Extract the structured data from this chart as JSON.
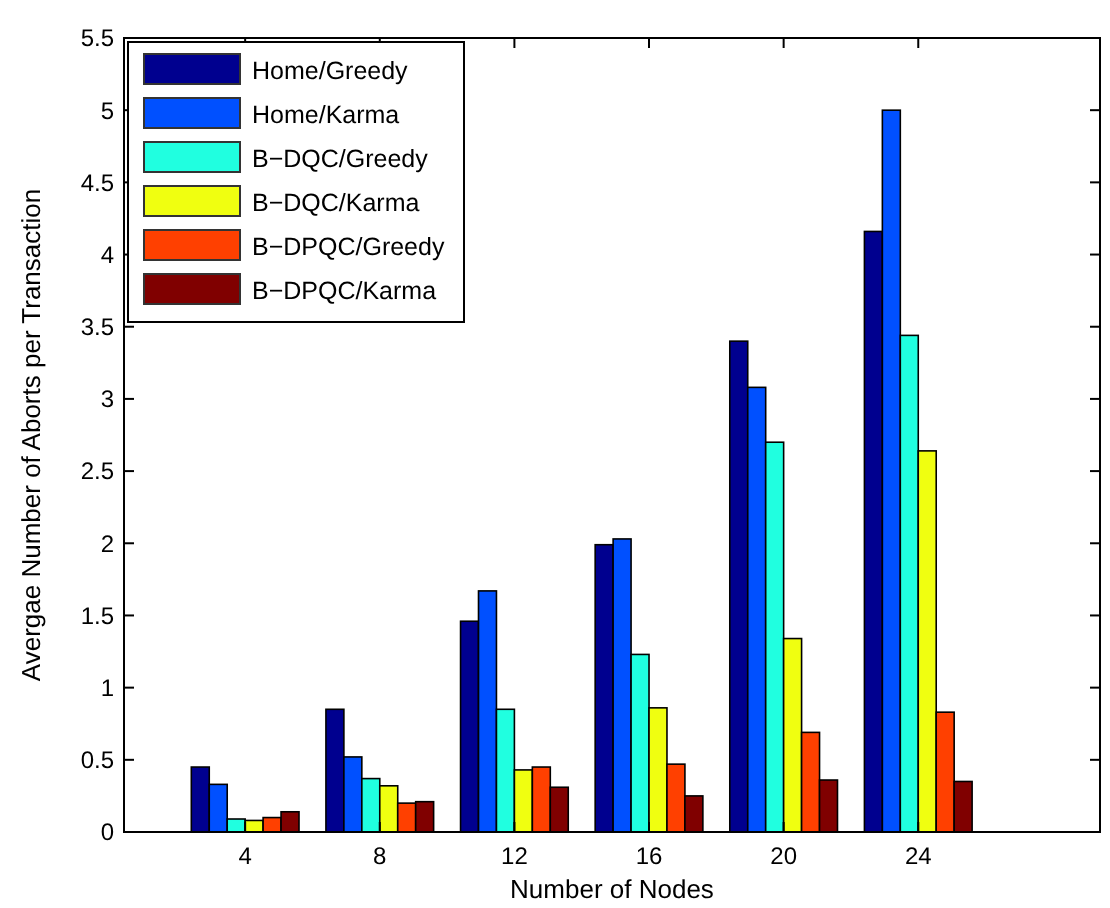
{
  "chart_data": {
    "type": "bar",
    "xlabel": "Number of Nodes",
    "ylabel": "Avergae Number of Aborts per Transaction",
    "categories": [
      "4",
      "8",
      "12",
      "16",
      "20",
      "24"
    ],
    "series": [
      {
        "name": "Home/Greedy",
        "color": "#00008f",
        "values": [
          0.45,
          0.85,
          1.46,
          1.99,
          3.4,
          4.16
        ]
      },
      {
        "name": "Home/Karma",
        "color": "#0050ff",
        "values": [
          0.33,
          0.52,
          1.67,
          2.03,
          3.08,
          5.0
        ]
      },
      {
        "name": "B−DQC/Greedy",
        "color": "#20ffe0",
        "values": [
          0.09,
          0.37,
          0.85,
          1.23,
          2.7,
          3.44
        ]
      },
      {
        "name": "B−DQC/Karma",
        "color": "#f0ff10",
        "values": [
          0.08,
          0.32,
          0.43,
          0.86,
          1.34,
          2.64
        ]
      },
      {
        "name": "B−DPQC/Greedy",
        "color": "#ff4000",
        "values": [
          0.1,
          0.2,
          0.45,
          0.47,
          0.69,
          0.83
        ]
      },
      {
        "name": "B−DPQC/Karma",
        "color": "#800000",
        "values": [
          0.14,
          0.21,
          0.31,
          0.25,
          0.36,
          0.35
        ]
      }
    ],
    "ylim": [
      0,
      5.5
    ],
    "yticks": [
      0,
      0.5,
      1,
      1.5,
      2,
      2.5,
      3,
      3.5,
      4,
      4.5,
      5,
      5.5
    ],
    "legend": "top left",
    "grid": false
  }
}
